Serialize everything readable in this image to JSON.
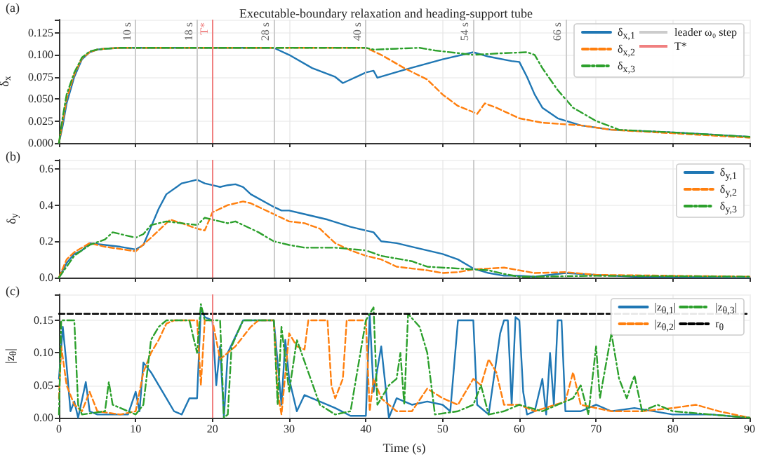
{
  "chart_data": [
    {
      "type": "line",
      "title": "Executable-boundary relaxation and heading-support tube",
      "ylabel": "δ$_{x}$",
      "annotations": [
        "(a)",
        "leader ω₀ step"
      ],
      "xlim": [
        0,
        90
      ],
      "xticks": [
        0,
        10,
        20,
        30,
        40,
        50,
        60,
        70,
        80,
        90
      ],
      "ylim": [
        0,
        0.14
      ],
      "yticks": [
        {
          "value": 0,
          "label": "0.000"
        },
        {
          "value": 0.025,
          "label": "0.025"
        },
        {
          "value": 0.05,
          "label": "0.050"
        },
        {
          "value": 0.075,
          "label": "0.075"
        },
        {
          "value": 0.1,
          "label": "0.100"
        },
        {
          "value": 0.125,
          "label": "0.125"
        }
      ],
      "tick_labels": "y",
      "grid": true,
      "legend": "top right",
      "marker": "none",
      "series": [
        {
          "name": "δ$_{x,1}$",
          "color": "#1f77b4",
          "line_style": "solid",
          "x": [
            0,
            0.5,
            1,
            2,
            3,
            4,
            5,
            6,
            8,
            28,
            30,
            33,
            36,
            37,
            38,
            40,
            41,
            41.5,
            45,
            50,
            54,
            56,
            59,
            60,
            61,
            62,
            63,
            65,
            68,
            72,
            80,
            90
          ],
          "values": [
            0,
            0.02,
            0.045,
            0.075,
            0.095,
            0.103,
            0.106,
            0.107,
            0.108,
            0.108,
            0.1,
            0.085,
            0.075,
            0.068,
            0.072,
            0.08,
            0.082,
            0.074,
            0.083,
            0.095,
            0.103,
            0.098,
            0.093,
            0.092,
            0.075,
            0.055,
            0.04,
            0.028,
            0.02,
            0.015,
            0.012,
            0.007
          ]
        },
        {
          "name": "δ$_{x,2}$",
          "color": "#ff7f0e",
          "line_style": "dashed",
          "x": [
            0,
            0.5,
            1,
            2,
            3,
            4,
            5,
            6,
            8,
            40,
            42,
            45,
            48,
            50,
            52,
            54,
            54.5,
            55.5,
            57,
            60,
            63,
            68,
            72,
            80,
            90
          ],
          "values": [
            0,
            0.025,
            0.05,
            0.078,
            0.096,
            0.103,
            0.106,
            0.107,
            0.108,
            0.108,
            0.1,
            0.085,
            0.072,
            0.055,
            0.042,
            0.035,
            0.033,
            0.045,
            0.04,
            0.028,
            0.023,
            0.02,
            0.015,
            0.011,
            0.006
          ]
        },
        {
          "name": "δ$_{x,3}$",
          "color": "#2ca02c",
          "line_style": "dotted",
          "x": [
            0,
            0.5,
            1,
            2,
            3,
            4,
            5,
            6,
            8,
            40,
            41,
            44,
            47,
            49,
            52,
            54,
            56,
            58,
            61,
            62,
            63,
            65,
            67,
            70,
            73,
            80,
            90
          ],
          "values": [
            0,
            0.03,
            0.055,
            0.08,
            0.097,
            0.104,
            0.106,
            0.107,
            0.108,
            0.108,
            0.106,
            0.107,
            0.108,
            0.105,
            0.102,
            0.1,
            0.101,
            0.102,
            0.103,
            0.1,
            0.085,
            0.06,
            0.04,
            0.025,
            0.015,
            0.012,
            0.007
          ]
        }
      ],
      "ref_lines": [
        {
          "axis": "x",
          "value": 10,
          "label": "10 s",
          "color": "#cccccc"
        },
        {
          "axis": "x",
          "value": 18,
          "label": "18 s",
          "color": "#cccccc"
        },
        {
          "axis": "x",
          "value": 28,
          "label": "28 s",
          "color": "#cccccc"
        },
        {
          "axis": "x",
          "value": 40,
          "label": "40 s",
          "color": "#cccccc"
        },
        {
          "axis": "x",
          "value": 54,
          "label": "54 s",
          "color": "#cccccc"
        },
        {
          "axis": "x",
          "value": 66,
          "label": "66 s",
          "color": "#cccccc"
        },
        {
          "axis": "x",
          "value": 20,
          "label": "T*",
          "color": "#f08080"
        }
      ]
    },
    {
      "type": "line",
      "ylabel": "δ$_{y}$",
      "annotations": [
        "(b)"
      ],
      "xlim": [
        0,
        90
      ],
      "xticks": [
        0,
        10,
        20,
        30,
        40,
        50,
        60,
        70,
        80,
        90
      ],
      "ylim": [
        0,
        0.65
      ],
      "yticks": [
        {
          "value": 0,
          "label": "0.0"
        },
        0.2,
        0.4,
        0.6
      ],
      "tick_labels": "y",
      "grid": true,
      "legend": "top right",
      "marker": "none",
      "series": [
        {
          "name": "δ$_{y,1}$",
          "color": "#1f77b4",
          "line_style": "solid",
          "x": [
            0,
            1,
            2,
            3,
            4,
            6,
            8,
            10,
            11,
            12,
            13,
            14,
            16,
            18,
            19,
            20,
            21,
            22,
            23,
            24,
            25,
            28,
            29,
            30,
            32,
            35,
            38,
            41,
            42,
            44,
            46,
            50,
            52,
            54,
            56,
            58,
            60,
            62,
            66,
            70,
            75,
            90
          ],
          "values": [
            0,
            0.08,
            0.13,
            0.15,
            0.19,
            0.18,
            0.17,
            0.155,
            0.18,
            0.28,
            0.38,
            0.46,
            0.52,
            0.54,
            0.52,
            0.51,
            0.5,
            0.51,
            0.515,
            0.5,
            0.46,
            0.39,
            0.37,
            0.37,
            0.35,
            0.32,
            0.28,
            0.25,
            0.2,
            0.19,
            0.17,
            0.13,
            0.1,
            0.05,
            0.025,
            0.01,
            0.01,
            0.005,
            0.025,
            0.015,
            0.005,
            0
          ]
        },
        {
          "name": "δ$_{y,2}$",
          "color": "#ff7f0e",
          "line_style": "dashed",
          "x": [
            0,
            1,
            2,
            4,
            6,
            10,
            12,
            14,
            14.5,
            16,
            18,
            19,
            20,
            22,
            24,
            25,
            28,
            30,
            32,
            34,
            36,
            38,
            40,
            42,
            44,
            46,
            48,
            50,
            52,
            54,
            56,
            58,
            60,
            62,
            66,
            70,
            80,
            90
          ],
          "values": [
            0,
            0.1,
            0.14,
            0.19,
            0.17,
            0.145,
            0.22,
            0.3,
            0.32,
            0.3,
            0.27,
            0.26,
            0.36,
            0.4,
            0.42,
            0.41,
            0.35,
            0.31,
            0.3,
            0.27,
            0.19,
            0.15,
            0.12,
            0.1,
            0.06,
            0.05,
            0.04,
            0.025,
            0.03,
            0.045,
            0.05,
            0.055,
            0.04,
            0.025,
            0.03,
            0.015,
            0.01,
            0.005
          ]
        },
        {
          "name": "δ$_{y,3}$",
          "color": "#2ca02c",
          "line_style": "dotted",
          "x": [
            0,
            1,
            2,
            4,
            6,
            7,
            8,
            10,
            11,
            12,
            14,
            16,
            18,
            19,
            20,
            22,
            23,
            26,
            28,
            30,
            32,
            36,
            40,
            42,
            46,
            48,
            52,
            56,
            58,
            60,
            62,
            70,
            90
          ],
          "values": [
            0,
            0.06,
            0.12,
            0.18,
            0.21,
            0.25,
            0.24,
            0.22,
            0.24,
            0.29,
            0.31,
            0.3,
            0.29,
            0.33,
            0.32,
            0.3,
            0.31,
            0.25,
            0.2,
            0.18,
            0.165,
            0.165,
            0.15,
            0.12,
            0.09,
            0.06,
            0.05,
            0.04,
            0.02,
            0.005,
            0.005,
            0.01,
            0.005
          ]
        }
      ],
      "ref_lines": [
        {
          "axis": "x",
          "value": 10,
          "label": null,
          "color": "#cccccc"
        },
        {
          "axis": "x",
          "value": 18,
          "label": null,
          "color": "#cccccc"
        },
        {
          "axis": "x",
          "value": 28,
          "label": null,
          "color": "#cccccc"
        },
        {
          "axis": "x",
          "value": 40,
          "label": null,
          "color": "#cccccc"
        },
        {
          "axis": "x",
          "value": 54,
          "label": null,
          "color": "#cccccc"
        },
        {
          "axis": "x",
          "value": 66,
          "label": null,
          "color": "#cccccc"
        },
        {
          "axis": "x",
          "value": 20,
          "label": null,
          "color": "#f08080"
        }
      ]
    },
    {
      "type": "line",
      "xlabel": "Time (s)",
      "ylabel": "|z$_{θ}$|",
      "annotations": [
        "(c)"
      ],
      "xlim": [
        0,
        90
      ],
      "xticks": [
        0,
        10,
        20,
        30,
        40,
        50,
        60,
        70,
        80,
        90
      ],
      "ylim": [
        0,
        0.19
      ],
      "yticks": [
        {
          "value": 0,
          "label": "0.00"
        },
        {
          "value": 0.05,
          "label": "0.05"
        },
        {
          "value": 0.1,
          "label": "0.10"
        },
        {
          "value": 0.15,
          "label": "0.15"
        }
      ],
      "grid": true,
      "legend": "top right",
      "marker": "none",
      "series": [
        {
          "name": "|z$_{θ,1}$|",
          "color": "#1f77b4",
          "line_style": "solid",
          "x": [
            0,
            0.5,
            1,
            1.5,
            2,
            2.5,
            3.5,
            4,
            5,
            9,
            10,
            10.5,
            11,
            12,
            14,
            15,
            16,
            17,
            18,
            18.5,
            19,
            20,
            20.5,
            21,
            21.5,
            22,
            24,
            28,
            29,
            29.5,
            30,
            31,
            32,
            34,
            36,
            38,
            40,
            40.5,
            41,
            42,
            43,
            44,
            46,
            48,
            50,
            51,
            52,
            54,
            54.5,
            56,
            57.5,
            58,
            58.5,
            59,
            59.5,
            60,
            60.5,
            61,
            62,
            63,
            63.5,
            64,
            64.5,
            65,
            65.5,
            66,
            68,
            70,
            72,
            75,
            80,
            85,
            90
          ],
          "values": [
            0.06,
            0.14,
            0.08,
            0.01,
            0.025,
            0,
            0.055,
            0.01,
            0.005,
            0.005,
            0.04,
            0.01,
            0.085,
            0.07,
            0.03,
            0.01,
            0.005,
            0.03,
            0.03,
            0.17,
            0.155,
            0.15,
            0.05,
            0.11,
            0,
            0.1,
            0.15,
            0.15,
            0.02,
            0.12,
            0.06,
            0.01,
            0.035,
            0.025,
            0.015,
            0.003,
            0.003,
            0.16,
            0.04,
            0.11,
            0,
            0.03,
            0.02,
            0.025,
            0.02,
            0.01,
            0.15,
            0.15,
            0.02,
            0.005,
            0.13,
            0.15,
            0.15,
            0.02,
            0.155,
            0.15,
            0.04,
            0.005,
            0.01,
            0.06,
            0.005,
            0.1,
            0.02,
            0.15,
            0.15,
            0.01,
            0.01,
            0.02,
            0.01,
            0.015,
            0.005,
            0.005,
            0
          ]
        },
        {
          "name": "|z$_{θ,2}$|",
          "color": "#ff7f0e",
          "line_style": "dashed",
          "x": [
            0,
            0.3,
            1,
            2,
            3,
            4,
            5,
            8,
            10,
            11,
            12,
            13,
            14,
            15,
            17,
            18,
            18.5,
            19,
            20,
            21,
            22,
            23,
            25,
            26,
            28,
            28.5,
            29,
            30,
            31,
            32,
            32.5,
            35,
            35.5,
            36,
            37,
            37.5,
            39,
            40,
            40.5,
            41,
            42,
            44,
            46,
            48,
            50,
            52,
            54,
            55,
            56,
            57,
            58,
            60,
            62,
            66,
            67,
            68,
            72,
            76,
            80,
            83,
            86,
            90
          ],
          "values": [
            0.03,
            0.11,
            0.05,
            0.02,
            0.01,
            0.04,
            0.01,
            0.005,
            0.01,
            0.07,
            0.1,
            0.12,
            0.145,
            0.15,
            0.15,
            0.15,
            0.05,
            0.15,
            0.15,
            0.09,
            0.1,
            0.11,
            0.14,
            0.15,
            0.15,
            0.04,
            0.005,
            0.13,
            0.11,
            0.105,
            0.15,
            0.15,
            0.05,
            0.03,
            0.06,
            0.15,
            0.15,
            0.15,
            0.01,
            0.06,
            0.03,
            0.01,
            0.01,
            0.045,
            0.03,
            0.02,
            0.06,
            0.05,
            0.09,
            0.07,
            0.02,
            0.02,
            0.01,
            0.025,
            0.07,
            0.02,
            0.01,
            0.01,
            0.015,
            0.02,
            0.01,
            0
          ]
        },
        {
          "name": "|z$_{θ,3}$|",
          "color": "#2ca02c",
          "line_style": "dotted",
          "x": [
            0,
            0.3,
            2,
            2.5,
            3,
            6,
            6.5,
            7,
            9,
            10,
            11,
            12,
            13,
            14,
            17,
            18,
            18.5,
            19,
            21,
            21.5,
            22,
            22.5,
            24,
            28,
            28.5,
            29,
            30,
            31,
            34,
            36,
            38,
            40,
            41,
            41.5,
            43,
            44,
            44.5,
            45,
            45.5,
            47,
            48,
            49,
            52,
            54,
            55,
            56,
            58,
            60,
            63,
            65,
            67,
            68,
            69,
            70,
            70.5,
            72,
            73,
            74,
            75,
            76,
            78,
            80,
            85,
            90
          ],
          "values": [
            0.005,
            0.15,
            0.15,
            0.02,
            0.005,
            0.01,
            0.055,
            0.02,
            0.01,
            0.005,
            0.02,
            0.12,
            0.14,
            0.15,
            0.15,
            0.1,
            0.175,
            0.15,
            0.15,
            0,
            0.005,
            0.11,
            0.15,
            0.15,
            0.02,
            0.14,
            0.04,
            0.12,
            0.02,
            0.005,
            0.01,
            0.15,
            0.17,
            0.02,
            0.05,
            0.06,
            0.1,
            0.02,
            0.16,
            0.14,
            0.1,
            0.005,
            0.01,
            0.02,
            0.05,
            0.005,
            0.01,
            0.02,
            0.01,
            0.02,
            0.03,
            0.05,
            0.005,
            0.11,
            0.03,
            0.13,
            0.06,
            0.03,
            0.065,
            0.01,
            0.02,
            0.01,
            0.005,
            0
          ]
        },
        {
          "name": "r$_{θ}$",
          "color": "#000000",
          "line_style": "dashed",
          "x": [
            0,
            90
          ],
          "values": [
            0.16,
            0.16
          ]
        }
      ],
      "ref_lines": [
        {
          "axis": "x",
          "value": 20,
          "label": null,
          "color": "#f08080"
        }
      ]
    }
  ]
}
